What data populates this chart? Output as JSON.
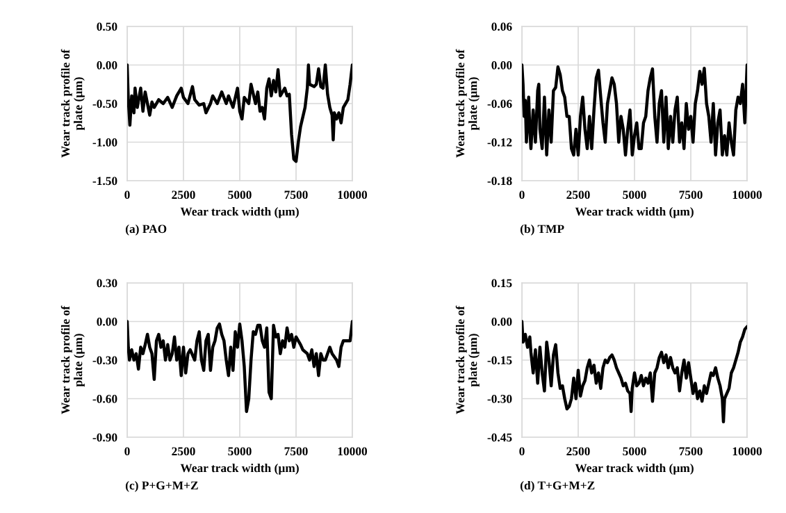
{
  "chart_data": [
    {
      "type": "line",
      "xlabel": "Wear track width (µm)",
      "ylabel": "Wear track profile of\nplate (µm)",
      "annotations": [
        "(a) PAO"
      ],
      "grid": true,
      "line_style": "solid",
      "marker": "none",
      "xlim": [
        0,
        10000
      ],
      "xticks": [
        0,
        2500,
        5000,
        7500,
        10000
      ],
      "ylim": [
        -1.5,
        0.5
      ],
      "yticks": [
        {
          "value": -1.5,
          "label": "-1.50"
        },
        {
          "value": -1.0,
          "label": "-1.00"
        },
        {
          "value": -0.5,
          "label": "-0.50"
        },
        {
          "value": 0,
          "label": "0.00"
        },
        {
          "value": 0.5,
          "label": "0.50"
        }
      ],
      "series": [
        {
          "color": "#000000",
          "x": [
            0,
            50,
            120,
            200,
            300,
            350,
            450,
            600,
            700,
            800,
            900,
            1000,
            1100,
            1200,
            1400,
            1600,
            1800,
            2000,
            2200,
            2400,
            2500,
            2700,
            2900,
            3000,
            3200,
            3400,
            3500,
            3700,
            3800,
            4000,
            4200,
            4400,
            4500,
            4700,
            4900,
            5000,
            5100,
            5200,
            5400,
            5500,
            5700,
            5800,
            5900,
            6000,
            6100,
            6200,
            6300,
            6400,
            6500,
            6600,
            6700,
            6800,
            7000,
            7100,
            7200,
            7300,
            7400,
            7500,
            7600,
            7700,
            7900,
            8000,
            8050,
            8100,
            8300,
            8400,
            8500,
            8600,
            8700,
            8800,
            8900,
            9000,
            9100,
            9150,
            9200,
            9300,
            9400,
            9500,
            9600,
            9800,
            9900,
            10000
          ],
          "values": [
            0,
            -0.45,
            -0.78,
            -0.4,
            -0.62,
            -0.3,
            -0.55,
            -0.3,
            -0.6,
            -0.35,
            -0.5,
            -0.65,
            -0.48,
            -0.55,
            -0.45,
            -0.5,
            -0.42,
            -0.55,
            -0.4,
            -0.3,
            -0.42,
            -0.5,
            -0.28,
            -0.45,
            -0.52,
            -0.5,
            -0.62,
            -0.5,
            -0.4,
            -0.5,
            -0.35,
            -0.5,
            -0.4,
            -0.55,
            -0.3,
            -0.6,
            -0.7,
            -0.42,
            -0.5,
            -0.25,
            -0.5,
            -0.35,
            -0.6,
            -0.55,
            -0.7,
            -0.3,
            -0.18,
            -0.4,
            -0.2,
            -0.35,
            -0.06,
            -0.4,
            -0.3,
            -0.4,
            -0.38,
            -0.9,
            -1.22,
            -1.25,
            -1.0,
            -0.8,
            -0.55,
            -0.3,
            0,
            -0.25,
            -0.28,
            -0.25,
            -0.05,
            -0.28,
            -0.3,
            0,
            -0.38,
            -0.55,
            -0.65,
            -0.97,
            -0.62,
            -0.7,
            -0.62,
            -0.75,
            -0.55,
            -0.45,
            -0.25,
            0
          ]
        }
      ]
    },
    {
      "type": "line",
      "xlabel": "Wear track width (µm)",
      "ylabel": "Wear track profile of\nplate (µm)",
      "annotations": [
        "(b) TMP"
      ],
      "grid": true,
      "line_style": "solid",
      "marker": "none",
      "xlim": [
        0,
        10000
      ],
      "xticks": [
        0,
        2500,
        5000,
        7500,
        10000
      ],
      "ylim": [
        -0.18,
        0.06
      ],
      "yticks": [
        {
          "value": -0.18,
          "label": "-0.18"
        },
        {
          "value": -0.12,
          "label": "-0.12"
        },
        {
          "value": -0.06,
          "label": "-0.06"
        },
        {
          "value": 0,
          "label": "0.00"
        },
        {
          "value": 0.06,
          "label": "0.06"
        }
      ],
      "series": [
        {
          "color": "#000000",
          "x": [
            0,
            50,
            100,
            150,
            200,
            300,
            350,
            400,
            500,
            600,
            700,
            750,
            800,
            900,
            1000,
            1100,
            1200,
            1300,
            1400,
            1500,
            1600,
            1700,
            1800,
            1900,
            2000,
            2100,
            2200,
            2300,
            2400,
            2500,
            2600,
            2700,
            2800,
            2900,
            3000,
            3100,
            3200,
            3300,
            3400,
            3500,
            3600,
            3700,
            3800,
            3900,
            4000,
            4100,
            4200,
            4300,
            4400,
            4500,
            4600,
            4700,
            4800,
            4900,
            5000,
            5100,
            5200,
            5300,
            5400,
            5500,
            5600,
            5700,
            5800,
            5900,
            6000,
            6100,
            6200,
            6300,
            6400,
            6500,
            6600,
            6700,
            6800,
            6900,
            7000,
            7100,
            7200,
            7300,
            7400,
            7500,
            7600,
            7700,
            7800,
            7900,
            8000,
            8100,
            8200,
            8300,
            8400,
            8500,
            8600,
            8700,
            8800,
            8900,
            9000,
            9100,
            9200,
            9300,
            9400,
            9500,
            9600,
            9700,
            9800,
            9900,
            10000
          ],
          "values": [
            0,
            -0.03,
            -0.08,
            -0.055,
            -0.12,
            -0.05,
            -0.1,
            -0.13,
            -0.07,
            -0.12,
            -0.04,
            -0.03,
            -0.1,
            -0.13,
            -0.05,
            -0.14,
            -0.07,
            -0.12,
            -0.04,
            -0.035,
            -0.003,
            -0.015,
            -0.04,
            -0.05,
            -0.08,
            -0.08,
            -0.13,
            -0.14,
            -0.1,
            -0.14,
            -0.08,
            -0.05,
            -0.1,
            -0.13,
            -0.08,
            -0.13,
            -0.07,
            -0.02,
            -0.008,
            -0.05,
            -0.09,
            -0.12,
            -0.06,
            -0.04,
            -0.02,
            -0.03,
            -0.06,
            -0.12,
            -0.08,
            -0.1,
            -0.14,
            -0.1,
            -0.07,
            -0.14,
            -0.11,
            -0.09,
            -0.13,
            -0.13,
            -0.09,
            -0.08,
            -0.04,
            -0.02,
            -0.006,
            -0.08,
            -0.12,
            -0.06,
            -0.04,
            -0.12,
            -0.05,
            -0.13,
            -0.08,
            -0.12,
            -0.07,
            -0.05,
            -0.12,
            -0.09,
            -0.13,
            -0.06,
            -0.1,
            -0.08,
            -0.12,
            -0.06,
            -0.04,
            -0.01,
            -0.03,
            -0.005,
            -0.06,
            -0.08,
            -0.12,
            -0.06,
            -0.14,
            -0.09,
            -0.07,
            -0.14,
            -0.11,
            -0.14,
            -0.09,
            -0.12,
            -0.14,
            -0.07,
            -0.05,
            -0.06,
            -0.03,
            -0.09,
            0
          ]
        }
      ]
    },
    {
      "type": "line",
      "xlabel": "Wear track width (µm)",
      "ylabel": "Wear track profile of\nplate (µm)",
      "annotations": [
        "(c) P+G+M+Z"
      ],
      "grid": true,
      "line_style": "solid",
      "marker": "none",
      "xlim": [
        0,
        10000
      ],
      "xticks": [
        0,
        2500,
        5000,
        7500,
        10000
      ],
      "ylim": [
        -0.9,
        0.3
      ],
      "yticks": [
        {
          "value": -0.9,
          "label": "-0.90"
        },
        {
          "value": -0.6,
          "label": "-0.60"
        },
        {
          "value": -0.3,
          "label": "-0.30"
        },
        {
          "value": 0,
          "label": "0.00"
        },
        {
          "value": 0.3,
          "label": "0.30"
        }
      ],
      "series": [
        {
          "color": "#000000",
          "x": [
            0,
            50,
            100,
            200,
            300,
            400,
            500,
            600,
            700,
            800,
            900,
            1000,
            1100,
            1200,
            1300,
            1400,
            1500,
            1600,
            1700,
            1800,
            1900,
            2000,
            2100,
            2200,
            2300,
            2400,
            2500,
            2600,
            2700,
            2800,
            3000,
            3100,
            3200,
            3300,
            3400,
            3500,
            3600,
            3700,
            3800,
            3900,
            4000,
            4100,
            4200,
            4300,
            4400,
            4500,
            4600,
            4700,
            4800,
            4900,
            5000,
            5100,
            5200,
            5300,
            5400,
            5500,
            5600,
            5700,
            5800,
            5900,
            6000,
            6100,
            6200,
            6300,
            6400,
            6500,
            6600,
            6700,
            6800,
            6900,
            7000,
            7100,
            7200,
            7300,
            7400,
            7500,
            7700,
            7800,
            8000,
            8100,
            8200,
            8300,
            8400,
            8500,
            8600,
            8700,
            8800,
            9000,
            9100,
            9300,
            9400,
            9500,
            9600,
            9800,
            9900,
            10000
          ],
          "values": [
            0,
            -0.2,
            -0.3,
            -0.22,
            -0.3,
            -0.25,
            -0.37,
            -0.2,
            -0.25,
            -0.18,
            -0.1,
            -0.2,
            -0.25,
            -0.45,
            -0.15,
            -0.1,
            -0.2,
            -0.15,
            -0.3,
            -0.18,
            -0.3,
            -0.25,
            -0.12,
            -0.3,
            -0.2,
            -0.42,
            -0.2,
            -0.4,
            -0.25,
            -0.22,
            -0.3,
            -0.15,
            -0.08,
            -0.3,
            -0.38,
            -0.15,
            -0.1,
            -0.38,
            -0.2,
            -0.15,
            -0.05,
            -0.02,
            -0.1,
            -0.15,
            -0.3,
            -0.42,
            -0.2,
            -0.38,
            -0.08,
            -0.2,
            -0.02,
            -0.15,
            -0.35,
            -0.7,
            -0.6,
            -0.3,
            -0.08,
            -0.1,
            -0.03,
            -0.03,
            -0.15,
            -0.2,
            -0.05,
            -0.55,
            -0.6,
            -0.03,
            -0.12,
            -0.1,
            -0.25,
            -0.15,
            -0.2,
            -0.05,
            -0.15,
            -0.1,
            -0.2,
            -0.12,
            -0.18,
            -0.22,
            -0.25,
            -0.3,
            -0.22,
            -0.35,
            -0.25,
            -0.42,
            -0.25,
            -0.3,
            -0.3,
            -0.2,
            -0.25,
            -0.3,
            -0.35,
            -0.2,
            -0.15,
            -0.15,
            -0.15,
            0
          ]
        }
      ]
    },
    {
      "type": "line",
      "xlabel": "Wear track width (µm)",
      "ylabel": "Wear track profile of\nplate (µm)",
      "annotations": [
        "(d) T+G+M+Z"
      ],
      "grid": true,
      "line_style": "solid",
      "marker": "none",
      "xlim": [
        0,
        10000
      ],
      "xticks": [
        0,
        2500,
        5000,
        7500,
        10000
      ],
      "ylim": [
        -0.45,
        0.15
      ],
      "yticks": [
        {
          "value": -0.45,
          "label": "-0.45"
        },
        {
          "value": -0.3,
          "label": "-0.30"
        },
        {
          "value": -0.15,
          "label": "-0.15"
        },
        {
          "value": 0,
          "label": "0.00"
        },
        {
          "value": 0.15,
          "label": "0.15"
        }
      ],
      "series": [
        {
          "color": "#000000",
          "x": [
            0,
            50,
            150,
            250,
            350,
            400,
            500,
            600,
            700,
            800,
            900,
            1000,
            1100,
            1200,
            1300,
            1400,
            1500,
            1600,
            1700,
            1800,
            1900,
            2000,
            2100,
            2200,
            2300,
            2400,
            2500,
            2600,
            2700,
            2800,
            2900,
            3000,
            3100,
            3200,
            3300,
            3400,
            3500,
            3600,
            3700,
            3800,
            3900,
            4000,
            4100,
            4200,
            4300,
            4400,
            4500,
            4600,
            4700,
            4800,
            4850,
            4900,
            5000,
            5100,
            5200,
            5300,
            5400,
            5500,
            5600,
            5700,
            5800,
            5900,
            6000,
            6100,
            6200,
            6300,
            6400,
            6500,
            6600,
            6700,
            6800,
            6900,
            7000,
            7100,
            7200,
            7300,
            7400,
            7500,
            7600,
            7700,
            7800,
            7900,
            8000,
            8100,
            8200,
            8300,
            8400,
            8500,
            8600,
            8700,
            8800,
            8900,
            8950,
            9000,
            9100,
            9200,
            9300,
            9400,
            9500,
            9600,
            9700,
            9800,
            9900,
            10000
          ],
          "values": [
            0,
            -0.08,
            -0.05,
            -0.1,
            -0.06,
            -0.12,
            -0.2,
            -0.11,
            -0.24,
            -0.1,
            -0.2,
            -0.27,
            -0.08,
            -0.15,
            -0.25,
            -0.13,
            -0.09,
            -0.2,
            -0.26,
            -0.25,
            -0.3,
            -0.34,
            -0.33,
            -0.3,
            -0.22,
            -0.3,
            -0.19,
            -0.29,
            -0.25,
            -0.23,
            -0.18,
            -0.15,
            -0.2,
            -0.17,
            -0.24,
            -0.2,
            -0.26,
            -0.18,
            -0.15,
            -0.16,
            -0.14,
            -0.13,
            -0.15,
            -0.18,
            -0.2,
            -0.22,
            -0.25,
            -0.24,
            -0.27,
            -0.28,
            -0.35,
            -0.26,
            -0.2,
            -0.25,
            -0.24,
            -0.21,
            -0.25,
            -0.22,
            -0.24,
            -0.2,
            -0.31,
            -0.2,
            -0.18,
            -0.14,
            -0.12,
            -0.16,
            -0.13,
            -0.18,
            -0.14,
            -0.18,
            -0.2,
            -0.18,
            -0.27,
            -0.2,
            -0.15,
            -0.22,
            -0.16,
            -0.22,
            -0.28,
            -0.24,
            -0.3,
            -0.27,
            -0.31,
            -0.25,
            -0.28,
            -0.24,
            -0.2,
            -0.21,
            -0.18,
            -0.22,
            -0.25,
            -0.3,
            -0.39,
            -0.3,
            -0.28,
            -0.26,
            -0.2,
            -0.18,
            -0.15,
            -0.12,
            -0.08,
            -0.06,
            -0.03,
            -0.02
          ]
        }
      ]
    }
  ]
}
